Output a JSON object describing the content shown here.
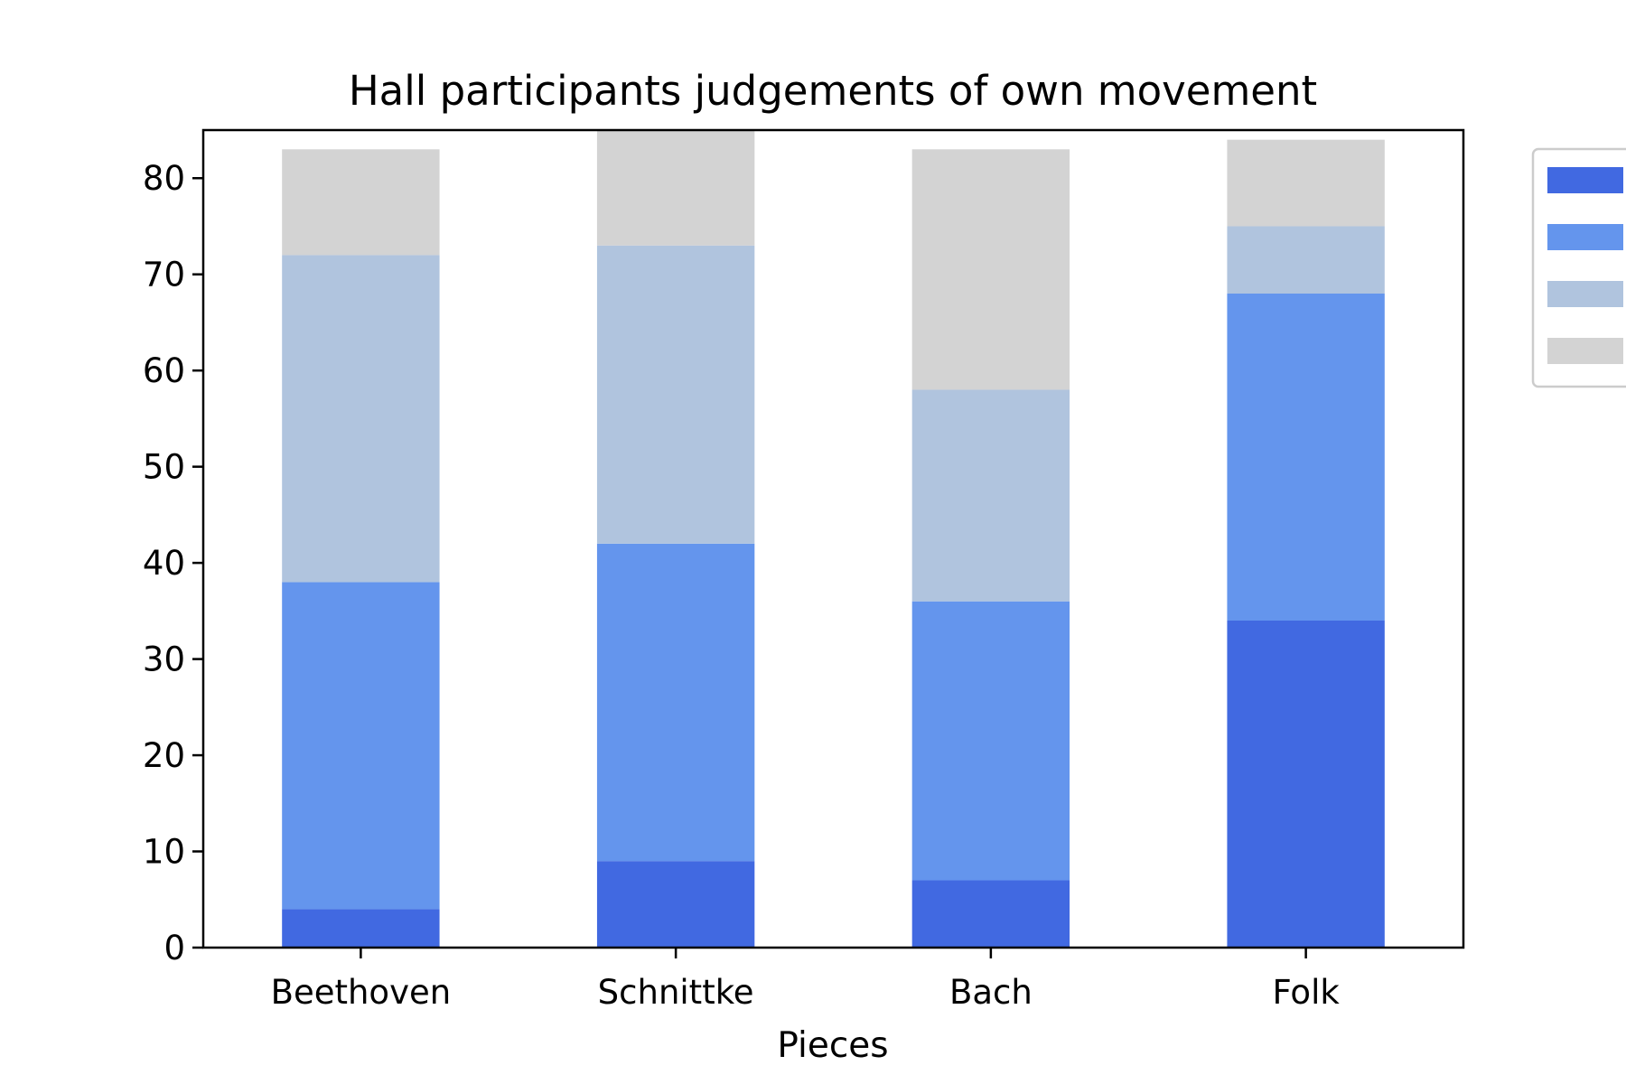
{
  "chart_data": {
    "type": "bar",
    "stacked": true,
    "title": "Hall participants judgements of own movement",
    "xlabel": "Pieces",
    "ylabel": "",
    "categories": [
      "Beethoven",
      "Schnittke",
      "Bach",
      "Folk"
    ],
    "ylim": [
      0,
      85
    ],
    "yticks": [
      0,
      10,
      20,
      30,
      40,
      50,
      60,
      70,
      80
    ],
    "grid": false,
    "legend_position": "upper-right-outside",
    "series": [
      {
        "color": "#4169e1",
        "values": [
          4,
          9,
          7,
          34
        ]
      },
      {
        "color": "#6495ed",
        "values": [
          34,
          33,
          29,
          34
        ]
      },
      {
        "color": "#b0c4de",
        "values": [
          34,
          31,
          22,
          7
        ]
      },
      {
        "color": "#d3d3d3",
        "values": [
          11,
          13,
          25,
          9
        ]
      }
    ]
  }
}
